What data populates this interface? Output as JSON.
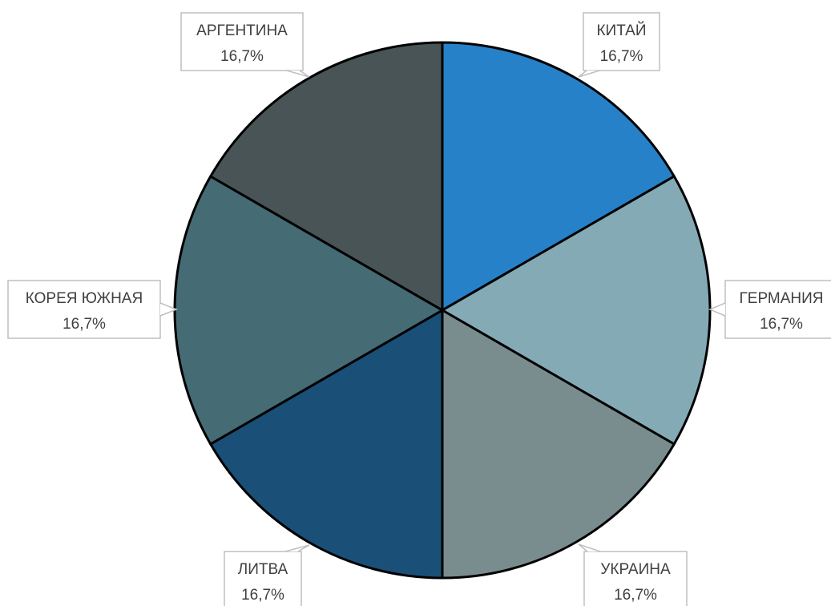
{
  "chart_data": {
    "type": "pie",
    "title": "",
    "start_angle_deg": 0,
    "direction": "clockwise",
    "slices": [
      {
        "label": "КИТАЙ",
        "value": 16.7,
        "value_label": "16,7%",
        "color": "#2781C8"
      },
      {
        "label": "ГЕРМАНИЯ",
        "value": 16.7,
        "value_label": "16,7%",
        "color": "#84AAB5"
      },
      {
        "label": "УКРАИНА",
        "value": 16.7,
        "value_label": "16,7%",
        "color": "#7A8D8E"
      },
      {
        "label": "ЛИТВА",
        "value": 16.7,
        "value_label": "16,7%",
        "color": "#1A4F78"
      },
      {
        "label": "КОРЕЯ ЮЖНАЯ",
        "value": 16.7,
        "value_label": "16,7%",
        "color": "#456B75"
      },
      {
        "label": "АРГЕНТИНА",
        "value": 16.7,
        "value_label": "16,7%",
        "color": "#495457"
      }
    ],
    "slice_border_color": "#000000",
    "label_box_border_color": "#bfbfbf",
    "label_text_color": "#404040"
  }
}
